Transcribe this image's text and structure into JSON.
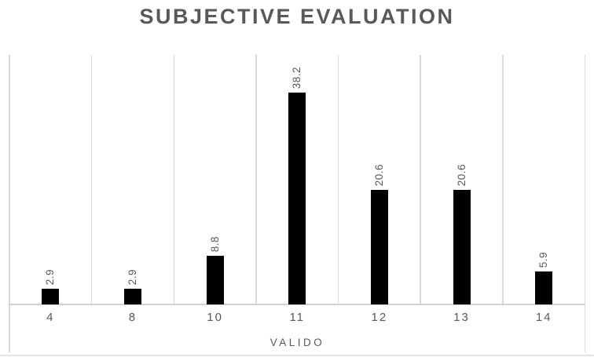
{
  "chart_data": {
    "type": "bar",
    "title": "SUBJECTIVE EVALUATION",
    "categories": [
      "4",
      "8",
      "10",
      "11",
      "12",
      "13",
      "14"
    ],
    "values": [
      2.9,
      2.9,
      8.8,
      38.2,
      20.6,
      20.6,
      5.9
    ],
    "data_labels": [
      "2.9",
      "2.9",
      "8.8",
      "38.2",
      "20.6",
      "20.6",
      "5.9"
    ],
    "xlabel": "VALIDO",
    "ylabel": "",
    "ylim": [
      0,
      45
    ],
    "grid": "vertical-only",
    "legend": "none",
    "bar_color": "#000000",
    "colors": {
      "title": "#595959",
      "gridline": "#d9d9d9",
      "axis_line": "#d2d2d2",
      "tick_label": "#595959",
      "data_label": "#595959",
      "background": "#ffffff"
    }
  }
}
